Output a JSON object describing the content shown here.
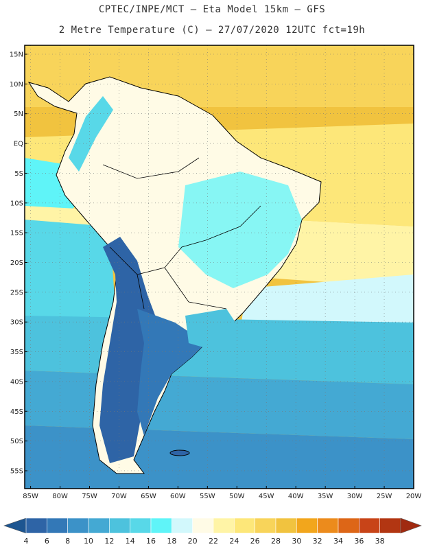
{
  "header": {
    "line1": "CPTEC/INPE/MCT –  Eta Model 15km – GFS",
    "line2": "2 Metre Temperature (C) – 27/07/2020 12UTC fct=19h"
  },
  "axes": {
    "lat_labels": [
      "15N",
      "10N",
      "5N",
      "EQ",
      "5S",
      "10S",
      "15S",
      "20S",
      "25S",
      "30S",
      "35S",
      "40S",
      "45S",
      "50S",
      "55S"
    ],
    "lon_labels": [
      "85W",
      "80W",
      "75W",
      "70W",
      "65W",
      "60W",
      "55W",
      "50W",
      "45W",
      "40W",
      "35W",
      "30W",
      "25W",
      "20W"
    ],
    "lat_range": [
      -58,
      16.5
    ],
    "lon_range": [
      -86,
      -20
    ]
  },
  "colorbar": {
    "levels": [
      "4",
      "6",
      "8",
      "10",
      "12",
      "14",
      "16",
      "18",
      "20",
      "22",
      "24",
      "26",
      "28",
      "30",
      "32",
      "34",
      "36",
      "38"
    ],
    "colors": [
      "#2e64a6",
      "#3378b7",
      "#3c92c8",
      "#44a9d3",
      "#4dc2dd",
      "#58d8e8",
      "#5ff4f8",
      "#d2f8fc",
      "#fffbe6",
      "#fff4a6",
      "#fde779",
      "#f8d45a",
      "#f1c33f",
      "#f2a61c",
      "#ec8b1c",
      "#dd6617",
      "#c84418",
      "#b23612"
    ],
    "under_color": "#1d5590",
    "over_color": "#a02a10"
  }
}
